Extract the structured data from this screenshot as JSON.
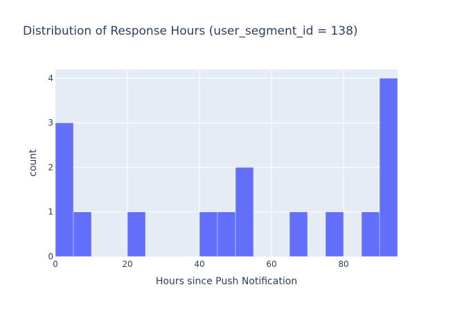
{
  "chart_data": {
    "type": "bar",
    "title": "Distribution of Response Hours (user_segment_id = 138)",
    "xlabel": "Hours since Push Notification",
    "ylabel": "count",
    "xlim": [
      0,
      95
    ],
    "ylim": [
      0,
      4.2
    ],
    "bin_size": 5,
    "xticks": [
      0,
      20,
      40,
      60,
      80
    ],
    "yticks": [
      0,
      1,
      2,
      3,
      4
    ],
    "bins": [
      {
        "x0": 0,
        "x1": 5,
        "count": 3
      },
      {
        "x0": 5,
        "x1": 10,
        "count": 1
      },
      {
        "x0": 20,
        "x1": 25,
        "count": 1
      },
      {
        "x0": 40,
        "x1": 45,
        "count": 1
      },
      {
        "x0": 45,
        "x1": 50,
        "count": 1
      },
      {
        "x0": 50,
        "x1": 55,
        "count": 2
      },
      {
        "x0": 65,
        "x1": 70,
        "count": 1
      },
      {
        "x0": 75,
        "x1": 80,
        "count": 1
      },
      {
        "x0": 85,
        "x1": 90,
        "count": 1
      },
      {
        "x0": 90,
        "x1": 95,
        "count": 4
      }
    ],
    "grid": true,
    "colors": {
      "bar": "#636efa",
      "plot_bg": "#e5ecf6",
      "grid": "#ffffff",
      "text": "#2a3f5f"
    }
  }
}
